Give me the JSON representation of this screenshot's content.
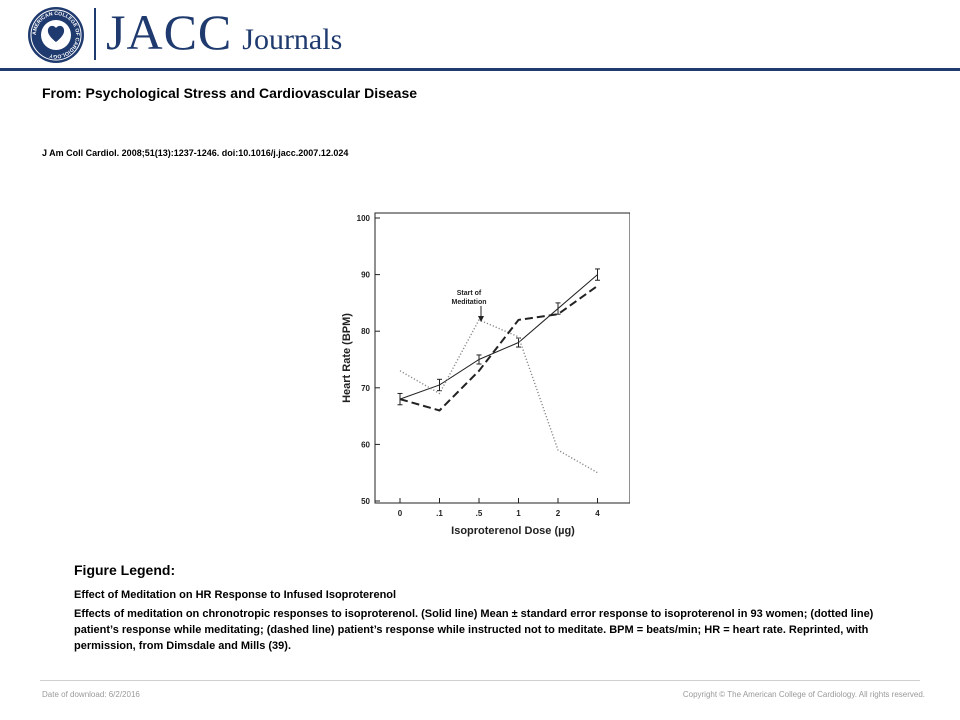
{
  "header": {
    "seal_text": "AMERICAN COLLEGE OF CARDIOLOGY",
    "logo_main": "JACC",
    "logo_sub": "Journals"
  },
  "title": "From: Psychological Stress and Cardiovascular Disease",
  "citation": "J Am Coll Cardiol. 2008;51(13):1237-1246. doi:10.1016/j.jacc.2007.12.024",
  "chart_data": {
    "type": "line",
    "categories": [
      "0",
      ".1",
      ".5",
      "1",
      "2",
      "4"
    ],
    "xlabel": "Isoproterenol Dose (µg)",
    "ylabel": "Heart Rate (BPM)",
    "ylim": [
      50,
      100
    ],
    "yticks": [
      50,
      60,
      70,
      80,
      90,
      100
    ],
    "grid": false,
    "annotation": {
      "text": [
        "Start of",
        "Meditation"
      ],
      "category": ".5"
    },
    "series": [
      {
        "style": "solid",
        "values": [
          68,
          70.5,
          75,
          78,
          84,
          90
        ],
        "errors": [
          1,
          1,
          0.8,
          0.8,
          1,
          1
        ]
      },
      {
        "style": "dotted",
        "values": [
          73,
          69,
          82,
          79,
          59,
          55
        ]
      },
      {
        "style": "dashed",
        "values": [
          68,
          66,
          73,
          82,
          83,
          88
        ]
      }
    ]
  },
  "legend": {
    "heading": "Figure Legend:",
    "title": "Effect of Meditation on HR Response to Infused Isoproterenol",
    "body": "Effects of meditation on chronotropic responses to isoproterenol. (Solid line) Mean ± standard error response to isoproterenol in 93 women; (dotted line) patient’s response while meditating; (dashed line) patient’s response while instructed not to meditate. BPM = beats/min; HR = heart rate. Reprinted, with permission, from Dimsdale and Mills (39)."
  },
  "footer": {
    "date": "Date of download:  6/2/2016",
    "copyright": "Copyright © The American College of Cardiology. All rights reserved."
  }
}
